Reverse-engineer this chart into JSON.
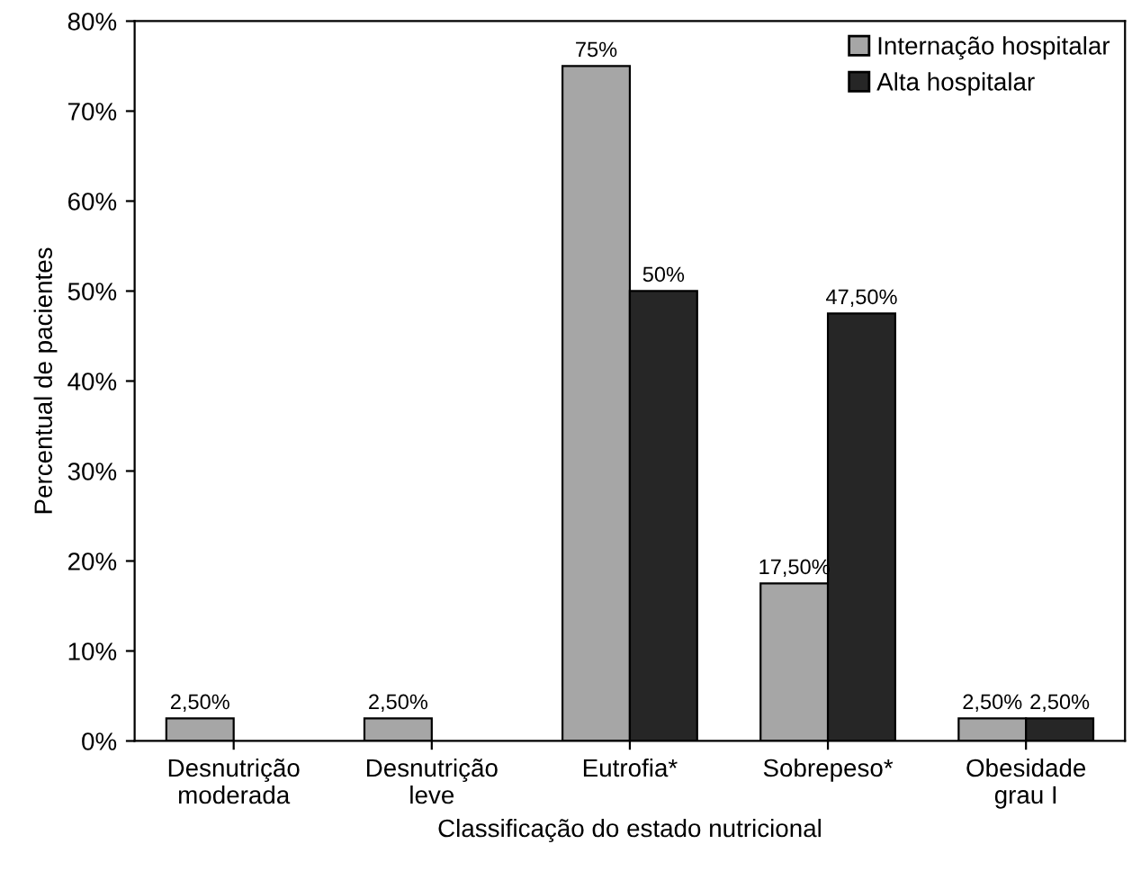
{
  "chart_data": {
    "type": "bar",
    "xlabel": "Classificação do estado nutricional",
    "ylabel": "Percentual de pacientes",
    "categories": [
      "Desnutrição\nmoderada",
      "Desnutrição\nleve",
      "Eutrofia*",
      "Sobrepeso*",
      "Obesidade\ngrau I"
    ],
    "series": [
      {
        "name": "Internação hospitalar",
        "color": "#a6a6a6",
        "values": [
          2.5,
          2.5,
          75,
          17.5,
          2.5
        ],
        "value_labels": [
          "2,50%",
          "2,50%",
          "75%",
          "17,50%",
          "2,50%"
        ]
      },
      {
        "name": "Alta hospitalar",
        "color": "#262626",
        "values": [
          null,
          null,
          50,
          47.5,
          2.5
        ],
        "value_labels": [
          null,
          null,
          "50%",
          "47,50%",
          "2,50%"
        ]
      }
    ],
    "ylim": [
      0,
      80
    ],
    "yticks": [
      {
        "value": 0,
        "label": "0%"
      },
      {
        "value": 10,
        "label": "10%"
      },
      {
        "value": 20,
        "label": "20%"
      },
      {
        "value": 30,
        "label": "30%"
      },
      {
        "value": 40,
        "label": "40%"
      },
      {
        "value": 50,
        "label": "50%"
      },
      {
        "value": 60,
        "label": "60%"
      },
      {
        "value": 70,
        "label": "70%"
      },
      {
        "value": 80,
        "label": "80%"
      }
    ],
    "grid": false,
    "legend": "top right"
  }
}
